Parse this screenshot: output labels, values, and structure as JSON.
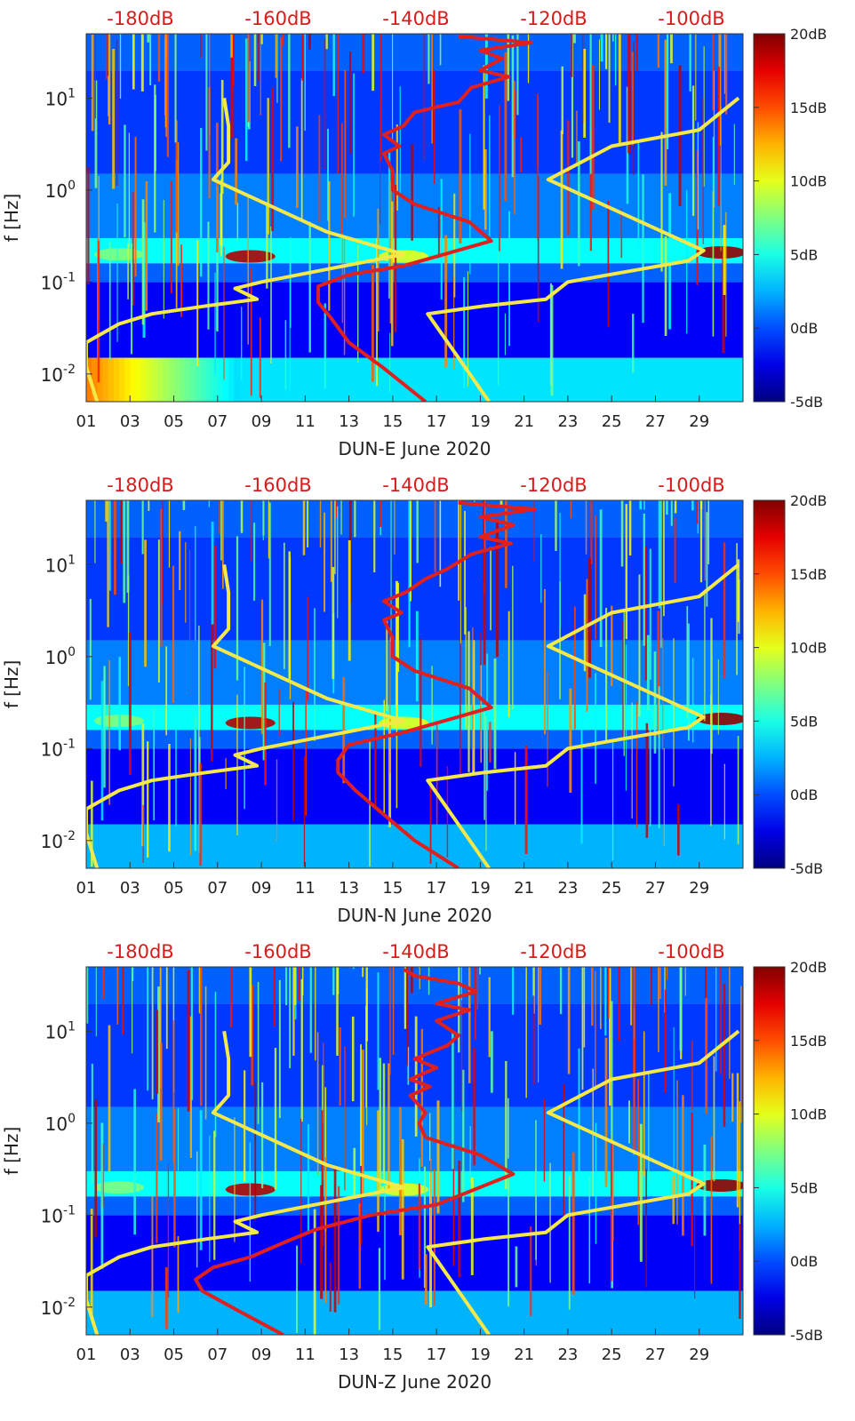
{
  "chart_data": [
    {
      "type": "heatmap",
      "station": "DUN-E",
      "xlabel": "DUN-E June 2020",
      "ylabel": "f [Hz]",
      "x_ticks": [
        "01",
        "03",
        "05",
        "07",
        "09",
        "11",
        "13",
        "15",
        "17",
        "19",
        "21",
        "23",
        "25",
        "27",
        "29"
      ],
      "x_range": [
        1,
        31
      ],
      "y_scale": "log",
      "y_range": [
        0.005,
        50
      ],
      "y_ticks": [
        {
          "value": 0.01,
          "base": "10",
          "exp": "-2"
        },
        {
          "value": 0.1,
          "base": "10",
          "exp": "-1"
        },
        {
          "value": 1,
          "base": "10",
          "exp": "0"
        },
        {
          "value": 10,
          "base": "10",
          "exp": "1"
        }
      ],
      "colorbar": {
        "range_db": [
          -5,
          20
        ],
        "ticks": [
          "20dB",
          "15dB",
          "10dB",
          "5dB",
          "0dB",
          "-5dB"
        ],
        "colormap": "jet"
      },
      "top_axis": {
        "ticks": [
          "-180dB",
          "-160dB",
          "-140dB",
          "-120dB",
          "-100dB"
        ],
        "color": "#d81b1b"
      },
      "noise_model_high": [
        [
          19.4,
          0.005
        ],
        [
          16.6,
          0.045
        ],
        [
          19.2,
          0.055
        ],
        [
          22,
          0.065
        ],
        [
          23,
          0.1
        ],
        [
          28.5,
          0.17
        ],
        [
          29.2,
          0.22
        ],
        [
          22.1,
          1.3
        ],
        [
          25,
          3
        ],
        [
          29,
          4.5
        ],
        [
          30.8,
          10
        ]
      ],
      "noise_model_low": [
        [
          1.5,
          0.005
        ],
        [
          1.0,
          0.012
        ],
        [
          1.0,
          0.022
        ],
        [
          2.5,
          0.035
        ],
        [
          4,
          0.045
        ],
        [
          6.5,
          0.055
        ],
        [
          8.8,
          0.065
        ],
        [
          7.8,
          0.085
        ],
        [
          9,
          0.1
        ],
        [
          15.5,
          0.2
        ],
        [
          12,
          0.35
        ],
        [
          6.8,
          1.3
        ],
        [
          7.5,
          2
        ],
        [
          7.5,
          5
        ],
        [
          7.3,
          10
        ]
      ],
      "psd_median": [
        [
          16.5,
          0.005
        ],
        [
          14.5,
          0.012
        ],
        [
          13,
          0.022
        ],
        [
          12.2,
          0.04
        ],
        [
          11.6,
          0.06
        ],
        [
          11.6,
          0.09
        ],
        [
          13,
          0.12
        ],
        [
          15.5,
          0.15
        ],
        [
          19.5,
          0.28
        ],
        [
          18.5,
          0.45
        ],
        [
          16,
          0.7
        ],
        [
          15,
          1.0
        ],
        [
          15,
          1.6
        ],
        [
          14.6,
          2.5
        ],
        [
          15.3,
          3
        ],
        [
          14.6,
          4
        ],
        [
          15.5,
          5
        ],
        [
          16,
          7
        ],
        [
          17,
          8
        ],
        [
          18,
          9
        ],
        [
          18.6,
          13
        ],
        [
          20.3,
          17
        ],
        [
          19,
          20
        ],
        [
          20,
          27
        ],
        [
          19,
          33
        ],
        [
          21.3,
          40
        ],
        [
          18,
          47
        ]
      ]
    },
    {
      "type": "heatmap",
      "station": "DUN-N",
      "xlabel": "DUN-N June 2020",
      "ylabel": "f [Hz]",
      "x_ticks": [
        "01",
        "03",
        "05",
        "07",
        "09",
        "11",
        "13",
        "15",
        "17",
        "19",
        "21",
        "23",
        "25",
        "27",
        "29"
      ],
      "x_range": [
        1,
        31
      ],
      "y_scale": "log",
      "y_range": [
        0.005,
        50
      ],
      "y_ticks": [
        {
          "value": 0.01,
          "base": "10",
          "exp": "-2"
        },
        {
          "value": 0.1,
          "base": "10",
          "exp": "-1"
        },
        {
          "value": 1,
          "base": "10",
          "exp": "0"
        },
        {
          "value": 10,
          "base": "10",
          "exp": "1"
        }
      ],
      "colorbar": {
        "range_db": [
          -5,
          20
        ],
        "ticks": [
          "20dB",
          "15dB",
          "10dB",
          "5dB",
          "0dB",
          "-5dB"
        ],
        "colormap": "jet"
      },
      "top_axis": {
        "ticks": [
          "-180dB",
          "-160dB",
          "-140dB",
          "-120dB",
          "-100dB"
        ],
        "color": "#d81b1b"
      },
      "noise_model_high": [
        [
          19.4,
          0.005
        ],
        [
          16.6,
          0.045
        ],
        [
          19.2,
          0.055
        ],
        [
          22,
          0.065
        ],
        [
          23,
          0.1
        ],
        [
          28.5,
          0.17
        ],
        [
          29.2,
          0.22
        ],
        [
          22.1,
          1.3
        ],
        [
          25,
          3
        ],
        [
          29,
          4.5
        ],
        [
          30.8,
          10
        ]
      ],
      "noise_model_low": [
        [
          1.5,
          0.005
        ],
        [
          1.0,
          0.012
        ],
        [
          1.0,
          0.022
        ],
        [
          2.5,
          0.035
        ],
        [
          4,
          0.045
        ],
        [
          6.5,
          0.055
        ],
        [
          8.8,
          0.065
        ],
        [
          7.8,
          0.085
        ],
        [
          9,
          0.1
        ],
        [
          15.5,
          0.2
        ],
        [
          12,
          0.35
        ],
        [
          6.8,
          1.3
        ],
        [
          7.5,
          2
        ],
        [
          7.5,
          5
        ],
        [
          7.3,
          10
        ]
      ],
      "psd_median": [
        [
          18,
          0.005
        ],
        [
          16,
          0.01
        ],
        [
          14.5,
          0.02
        ],
        [
          13.3,
          0.035
        ],
        [
          12.5,
          0.055
        ],
        [
          12.5,
          0.075
        ],
        [
          13,
          0.11
        ],
        [
          15.5,
          0.15
        ],
        [
          19.5,
          0.28
        ],
        [
          18.5,
          0.45
        ],
        [
          16,
          0.7
        ],
        [
          15,
          1.0
        ],
        [
          15,
          1.6
        ],
        [
          14.6,
          2.5
        ],
        [
          15.4,
          3
        ],
        [
          14.6,
          4
        ],
        [
          15.6,
          5
        ],
        [
          16.5,
          7
        ],
        [
          17.5,
          9
        ],
        [
          18.6,
          13
        ],
        [
          20.4,
          17
        ],
        [
          19,
          20
        ],
        [
          20.5,
          27
        ],
        [
          19,
          33
        ],
        [
          21.5,
          40
        ],
        [
          18,
          47
        ]
      ]
    },
    {
      "type": "heatmap",
      "station": "DUN-Z",
      "xlabel": "DUN-Z June 2020",
      "ylabel": "f [Hz]",
      "x_ticks": [
        "01",
        "03",
        "05",
        "07",
        "09",
        "11",
        "13",
        "15",
        "17",
        "19",
        "21",
        "23",
        "25",
        "27",
        "29"
      ],
      "x_range": [
        1,
        31
      ],
      "y_scale": "log",
      "y_range": [
        0.005,
        50
      ],
      "y_ticks": [
        {
          "value": 0.01,
          "base": "10",
          "exp": "-2"
        },
        {
          "value": 0.1,
          "base": "10",
          "exp": "-1"
        },
        {
          "value": 1,
          "base": "10",
          "exp": "0"
        },
        {
          "value": 10,
          "base": "10",
          "exp": "1"
        }
      ],
      "colorbar": {
        "range_db": [
          -5,
          20
        ],
        "ticks": [
          "20dB",
          "15dB",
          "10dB",
          "5dB",
          "0dB",
          "-5dB"
        ],
        "colormap": "jet"
      },
      "top_axis": {
        "ticks": [
          "-180dB",
          "-160dB",
          "-140dB",
          "-120dB",
          "-100dB"
        ],
        "color": "#d81b1b"
      },
      "noise_model_high": [
        [
          19.4,
          0.005
        ],
        [
          16.6,
          0.045
        ],
        [
          19.2,
          0.055
        ],
        [
          22,
          0.065
        ],
        [
          23,
          0.1
        ],
        [
          28.5,
          0.17
        ],
        [
          29.2,
          0.22
        ],
        [
          22.1,
          1.3
        ],
        [
          25,
          3
        ],
        [
          29,
          4.5
        ],
        [
          30.8,
          10
        ]
      ],
      "noise_model_low": [
        [
          1.5,
          0.005
        ],
        [
          1.0,
          0.012
        ],
        [
          1.0,
          0.022
        ],
        [
          2.5,
          0.035
        ],
        [
          4,
          0.045
        ],
        [
          6.5,
          0.055
        ],
        [
          8.8,
          0.065
        ],
        [
          7.8,
          0.085
        ],
        [
          9,
          0.1
        ],
        [
          15.5,
          0.2
        ],
        [
          12,
          0.35
        ],
        [
          6.8,
          1.3
        ],
        [
          7.5,
          2
        ],
        [
          7.5,
          5
        ],
        [
          7.3,
          10
        ]
      ],
      "psd_median": [
        [
          10,
          0.005
        ],
        [
          8,
          0.009
        ],
        [
          6.3,
          0.015
        ],
        [
          6,
          0.02
        ],
        [
          6.8,
          0.027
        ],
        [
          8.5,
          0.035
        ],
        [
          10,
          0.05
        ],
        [
          11.5,
          0.07
        ],
        [
          14,
          0.1
        ],
        [
          17,
          0.13
        ],
        [
          20.5,
          0.28
        ],
        [
          19,
          0.45
        ],
        [
          16.5,
          0.7
        ],
        [
          16.2,
          1.0
        ],
        [
          16.5,
          1.3
        ],
        [
          15.8,
          2
        ],
        [
          16.7,
          2.5
        ],
        [
          15.8,
          3
        ],
        [
          17,
          4
        ],
        [
          16,
          5
        ],
        [
          17.5,
          7
        ],
        [
          18,
          9
        ],
        [
          17,
          13
        ],
        [
          18.5,
          17
        ],
        [
          17,
          20
        ],
        [
          18.8,
          27
        ],
        [
          18,
          33
        ],
        [
          16,
          40
        ],
        [
          15.5,
          47
        ]
      ]
    }
  ]
}
